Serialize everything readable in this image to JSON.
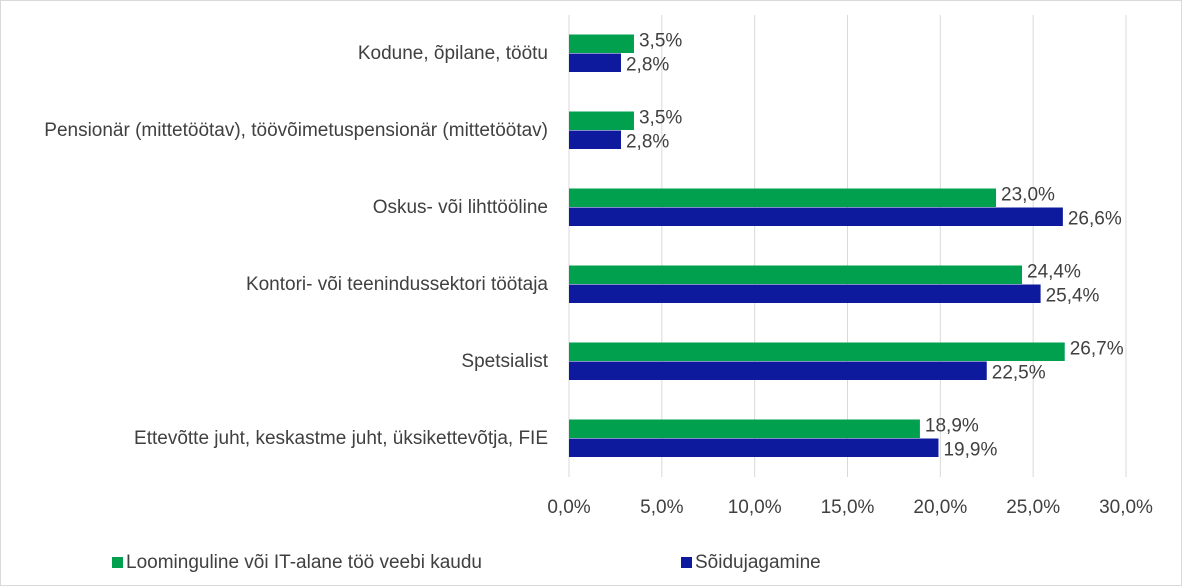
{
  "chart_data": {
    "type": "bar",
    "orientation": "horizontal",
    "categories": [
      "Kodune, õpilane, töötu",
      "Pensionär (mittetöötav), töövõimetuspensionär (mittetöötav)",
      "Oskus- või lihttööline",
      "Kontori- või teenindussektori töötaja",
      "Spetsialist",
      "Ettevõtte juht, keskastme juht, üksikettevõtja, FIE"
    ],
    "series": [
      {
        "name": "Loominguline või IT-alane töö veebi kaudu",
        "color": "#00a04f",
        "values": [
          3.5,
          3.5,
          23.0,
          24.4,
          26.7,
          18.9
        ],
        "value_labels": [
          "3,5%",
          "3,5%",
          "23,0%",
          "24,4%",
          "26,7%",
          "18,9%"
        ]
      },
      {
        "name": "Sõidujagamine",
        "color": "#0d1a9e",
        "values": [
          2.8,
          2.8,
          26.6,
          25.4,
          22.5,
          19.9
        ],
        "value_labels": [
          "2,8%",
          "2,8%",
          "26,6%",
          "25,4%",
          "22,5%",
          "19,9%"
        ]
      }
    ],
    "xlim": [
      0,
      30
    ],
    "xticks": [
      {
        "value": 0,
        "label": "0,0%"
      },
      {
        "value": 5,
        "label": "5,0%"
      },
      {
        "value": 10,
        "label": "10,0%"
      },
      {
        "value": 15,
        "label": "15,0%"
      },
      {
        "value": 20,
        "label": "20,0%"
      },
      {
        "value": 25,
        "label": "25,0%"
      },
      {
        "value": 30,
        "label": "30,0%"
      }
    ],
    "grid": true,
    "legend": "bottom"
  }
}
